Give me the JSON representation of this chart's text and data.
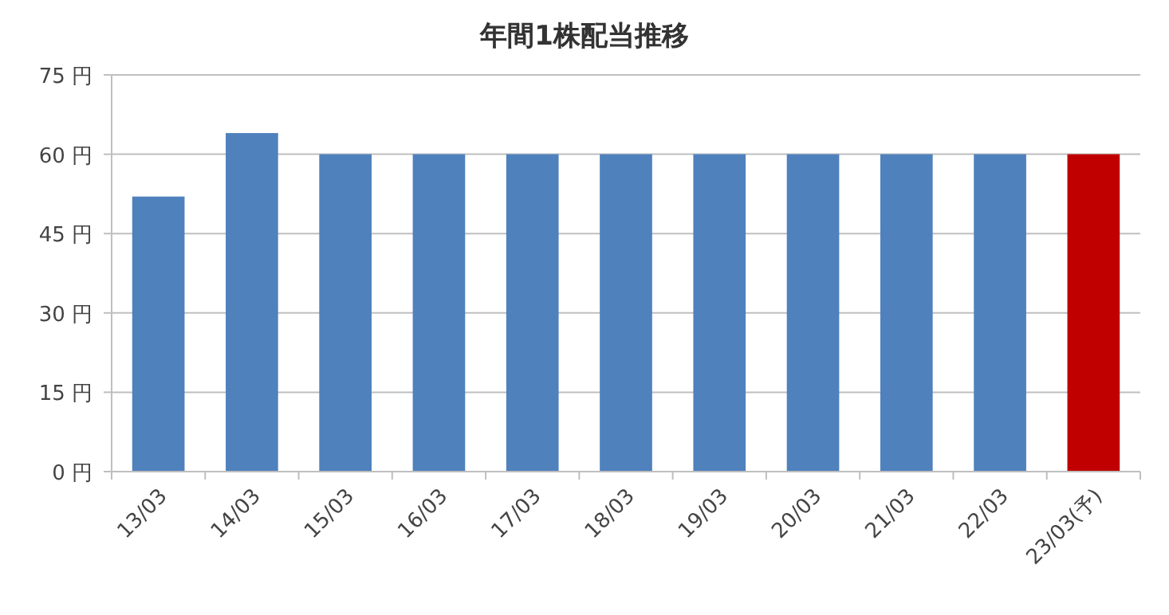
{
  "chart_data": {
    "type": "bar",
    "title": "年間1株配当推移",
    "categories": [
      "13/03",
      "14/03",
      "15/03",
      "16/03",
      "17/03",
      "18/03",
      "19/03",
      "20/03",
      "21/03",
      "22/03",
      "23/03(予)"
    ],
    "values": [
      52,
      64,
      60,
      60,
      60,
      60,
      60,
      60,
      60,
      60,
      60
    ],
    "colors": [
      "#4f81bd",
      "#4f81bd",
      "#4f81bd",
      "#4f81bd",
      "#4f81bd",
      "#4f81bd",
      "#4f81bd",
      "#4f81bd",
      "#4f81bd",
      "#4f81bd",
      "#c00000"
    ],
    "ylim": [
      0,
      75
    ],
    "yticks": [
      {
        "value": 0,
        "label": "0 円"
      },
      {
        "value": 15,
        "label": "15 円"
      },
      {
        "value": 30,
        "label": "30 円"
      },
      {
        "value": 45,
        "label": "45 円"
      },
      {
        "value": 60,
        "label": "60 円"
      },
      {
        "value": 75,
        "label": "75 円"
      }
    ],
    "grid": "y"
  }
}
